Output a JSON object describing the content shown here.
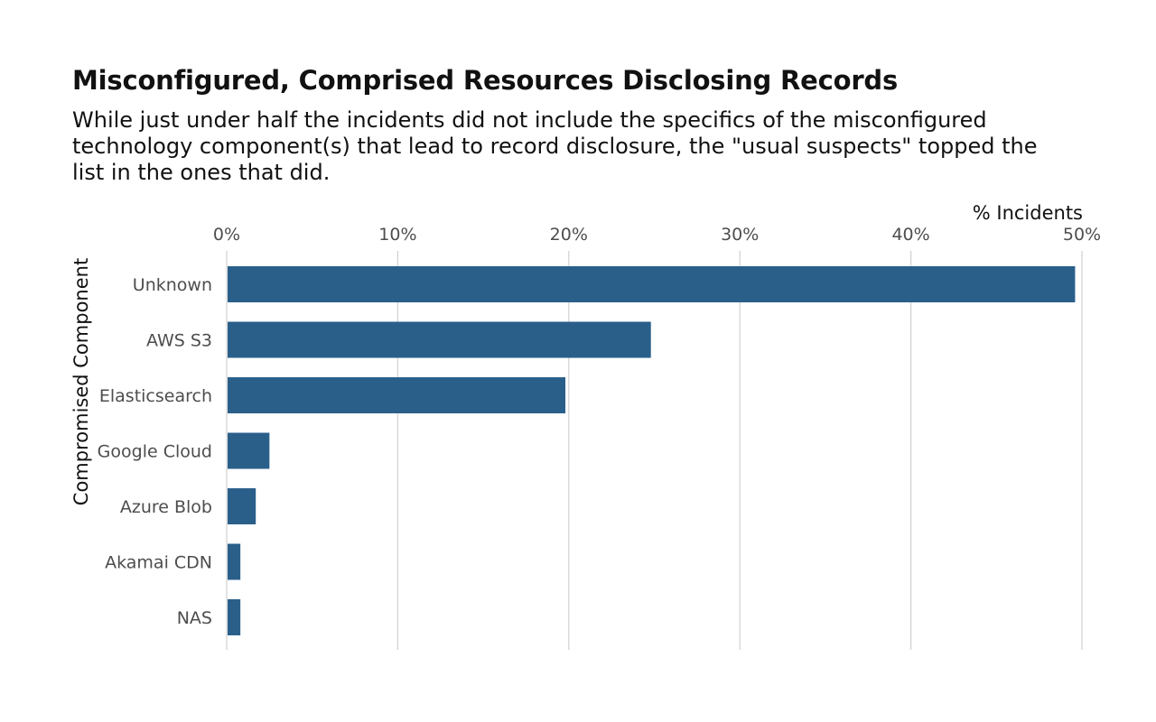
{
  "chart_data": {
    "type": "bar",
    "orientation": "horizontal",
    "title": "Misconfigured, Comprised Resources Disclosing Records",
    "subtitle": "While just under half the incidents did not include the specifics of the misconfigured technology component(s) that lead to record disclosure, the \"usual suspects\" topped the list in the ones that did.",
    "xlabel": "% Incidents",
    "ylabel": "Compromised Component",
    "categories": [
      "Unknown",
      "AWS S3",
      "Elasticsearch",
      "Google Cloud",
      "Azure Blob",
      "Akamai CDN",
      "NAS"
    ],
    "values": [
      49.6,
      24.8,
      19.8,
      2.5,
      1.7,
      0.8,
      0.8
    ],
    "xlim": [
      0,
      50
    ],
    "xticks": [
      0,
      10,
      20,
      30,
      40,
      50
    ],
    "xtick_labels": [
      "0%",
      "10%",
      "20%",
      "30%",
      "40%",
      "50%"
    ],
    "x_axis_position": "top",
    "grid": "vertical",
    "bar_color": "#2a5f8a"
  }
}
